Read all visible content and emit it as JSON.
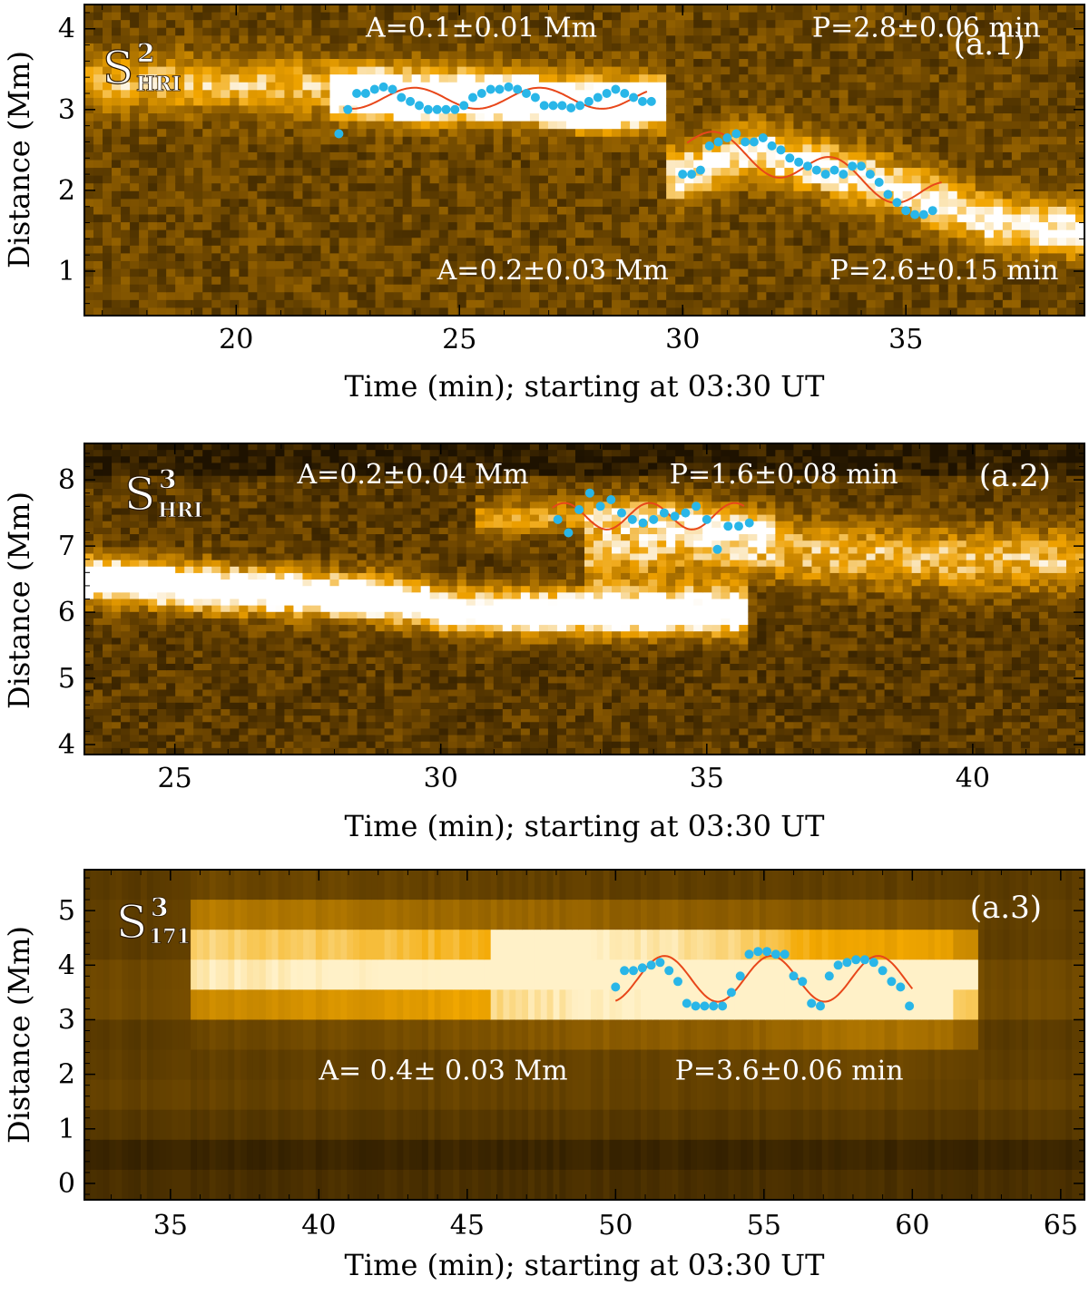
{
  "chart_data": [
    {
      "type": "scatter",
      "panel_label": "(a.1)",
      "slit": {
        "base": "S",
        "sup": "2",
        "sub": "HRI"
      },
      "xlabel": "Time (min); starting at 03:30 UT",
      "ylabel": "Distance (Mm)",
      "xlim": [
        16.6,
        39.0
      ],
      "ylim": [
        0.45,
        4.3
      ],
      "xticks": [
        20,
        25,
        30,
        35
      ],
      "yticks": [
        1,
        2,
        3,
        4
      ],
      "annotations": [
        {
          "text": "A=0.1±0.01 Mm",
          "x": 22.9,
          "y": 3.9
        },
        {
          "text": "P=2.8±0.06 min",
          "x": 32.9,
          "y": 3.9
        },
        {
          "text": "A=0.2±0.03 Mm",
          "x": 24.5,
          "y": 0.9
        },
        {
          "text": "P=2.6±0.15 min",
          "x": 33.3,
          "y": 0.9
        }
      ],
      "image": {
        "dark": "#2a1a00",
        "mid": "#8a5a00",
        "bright": "#f2a500",
        "peak": "#ffffff",
        "bright_tracks": [
          {
            "x": [
              16.6,
              20,
              24,
              27,
              29.3
            ],
            "y": [
              3.35,
              3.3,
              3.25,
              3.15,
              3.1
            ],
            "width": 0.35,
            "strength": 0.55
          },
          {
            "x": [
              22.5,
              24,
              26,
              28,
              29.3
            ],
            "y": [
              3.2,
              3.1,
              3.15,
              3.0,
              3.1
            ],
            "width": 0.25,
            "strength": 0.9
          },
          {
            "x": [
              30,
              31.5,
              33,
              35,
              37,
              39
            ],
            "y": [
              2.2,
              2.5,
              2.3,
              2.0,
              1.6,
              1.5
            ],
            "width": 0.35,
            "strength": 0.75
          }
        ]
      },
      "series": [
        {
          "kind": "points",
          "color": "#29b6e8",
          "x": [
            22.3,
            22.5,
            22.7,
            22.9,
            23.1,
            23.3,
            23.5,
            23.7,
            23.9,
            24.1,
            24.3,
            24.5,
            24.7,
            24.9,
            25.1,
            25.3,
            25.5,
            25.7,
            25.9,
            26.1,
            26.3,
            26.5,
            26.7,
            26.9,
            27.1,
            27.3,
            27.5,
            27.7,
            27.9,
            28.1,
            28.3,
            28.5,
            28.7,
            28.9,
            29.1,
            29.3
          ],
          "y": [
            2.7,
            3.0,
            3.2,
            3.2,
            3.25,
            3.28,
            3.25,
            3.15,
            3.1,
            3.05,
            3.0,
            3.0,
            3.0,
            3.0,
            3.05,
            3.15,
            3.2,
            3.25,
            3.25,
            3.28,
            3.25,
            3.2,
            3.15,
            3.05,
            3.05,
            3.05,
            3.02,
            3.05,
            3.1,
            3.15,
            3.2,
            3.25,
            3.2,
            3.15,
            3.1,
            3.1
          ]
        },
        {
          "kind": "fit",
          "color": "#e8471a",
          "x0": 22.4,
          "x1": 29.2,
          "mean": 3.14,
          "amp": 0.13,
          "period": 2.8,
          "phase": -2.0
        },
        {
          "kind": "points",
          "color": "#29b6e8",
          "x": [
            30.0,
            30.2,
            30.4,
            30.6,
            30.8,
            31.0,
            31.2,
            31.4,
            31.6,
            31.8,
            32.0,
            32.2,
            32.4,
            32.6,
            32.8,
            33.0,
            33.2,
            33.4,
            33.6,
            33.8,
            34.0,
            34.2,
            34.4,
            34.6,
            34.8,
            35.0,
            35.2,
            35.4,
            35.6
          ],
          "y": [
            2.2,
            2.2,
            2.25,
            2.55,
            2.6,
            2.65,
            2.7,
            2.6,
            2.6,
            2.65,
            2.55,
            2.5,
            2.4,
            2.35,
            2.3,
            2.25,
            2.2,
            2.25,
            2.2,
            2.3,
            2.3,
            2.2,
            2.1,
            1.95,
            1.85,
            1.75,
            1.7,
            1.7,
            1.75
          ]
        },
        {
          "kind": "fit",
          "color": "#e8471a",
          "x0": 30.1,
          "x1": 35.8,
          "mean": 2.6,
          "trend": -0.12,
          "amp": 0.2,
          "period": 2.6,
          "phase": 2.6
        }
      ]
    },
    {
      "type": "scatter",
      "panel_label": "(a.2)",
      "slit": {
        "base": "S",
        "sup": "3",
        "sub": "HRI"
      },
      "xlabel": "Time (min); starting at 03:30 UT",
      "ylabel": "Distance (Mm)",
      "xlim": [
        23.3,
        42.1
      ],
      "ylim": [
        3.85,
        8.55
      ],
      "xticks": [
        25,
        30,
        35,
        40
      ],
      "yticks": [
        4,
        5,
        6,
        7,
        8
      ],
      "annotations": [
        {
          "text": "A=0.2±0.04 Mm",
          "x": 27.3,
          "y": 7.95
        },
        {
          "text": "P=1.6±0.08 min",
          "x": 34.3,
          "y": 7.95
        }
      ],
      "image": {
        "dark": "#1e1200",
        "mid": "#7a4e00",
        "bright": "#eea000",
        "peak": "#ffffff",
        "bright_tracks": [
          {
            "x": [
              23.3,
              25,
              27,
              29,
              30.5,
              32,
              34,
              35.5
            ],
            "y": [
              6.5,
              6.4,
              6.3,
              6.2,
              6.0,
              6.0,
              6.0,
              6.0
            ],
            "width": 0.35,
            "strength": 1.0
          },
          {
            "x": [
              33,
              35,
              37,
              39,
              42.1
            ],
            "y": [
              6.9,
              7.0,
              6.9,
              6.8,
              6.8
            ],
            "width": 0.5,
            "strength": 0.55
          },
          {
            "x": [
              31,
              33,
              35,
              36
            ],
            "y": [
              7.4,
              7.5,
              7.4,
              7.3
            ],
            "width": 0.3,
            "strength": 0.45
          }
        ],
        "dark_band_top": 8.1
      },
      "series": [
        {
          "kind": "points",
          "color": "#29b6e8",
          "x": [
            32.2,
            32.4,
            32.6,
            32.8,
            33.0,
            33.2,
            33.4,
            33.6,
            33.8,
            34.0,
            34.2,
            34.4,
            34.6,
            34.8,
            35.0,
            35.2,
            35.4,
            35.6,
            35.8
          ],
          "y": [
            7.4,
            7.2,
            7.55,
            7.8,
            7.6,
            7.7,
            7.5,
            7.4,
            7.35,
            7.4,
            7.5,
            7.45,
            7.5,
            7.6,
            7.4,
            6.95,
            7.3,
            7.3,
            7.35
          ]
        },
        {
          "kind": "fit",
          "color": "#e8471a",
          "x0": 32.1,
          "x1": 35.7,
          "mean": 7.45,
          "amp": 0.2,
          "period": 1.6,
          "phase": 0.3
        }
      ]
    },
    {
      "type": "scatter",
      "panel_label": "(a.3)",
      "slit": {
        "base": "S",
        "sup": "3",
        "sub": "171"
      },
      "xlabel": "Time (min); starting at 03:30 UT",
      "ylabel": "Distance (Mm)",
      "xlim": [
        32.1,
        65.8
      ],
      "ylim": [
        -0.3,
        5.75
      ],
      "xticks": [
        35,
        40,
        45,
        50,
        55,
        60,
        65
      ],
      "yticks": [
        0,
        1,
        2,
        3,
        4,
        5
      ],
      "annotations": [
        {
          "text": "A= 0.4± 0.03 Mm",
          "x": 40.0,
          "y": 1.9
        },
        {
          "text": "P=3.6±0.06 min",
          "x": 52.0,
          "y": 1.9
        }
      ],
      "image": {
        "dark": "#231500",
        "mid": "#8c5c00",
        "bright": "#f3a800",
        "peak": "#fff1c8",
        "bright_tracks": [
          {
            "x": [
              36,
              42,
              46,
              50,
              54,
              58,
              62
            ],
            "y": [
              4.1,
              4.0,
              3.9,
              3.8,
              3.8,
              3.7,
              3.7
            ],
            "width": 0.9,
            "strength": 0.75
          },
          {
            "x": [
              46,
              50,
              54,
              57,
              61
            ],
            "y": [
              3.9,
              3.9,
              3.8,
              3.6,
              3.6
            ],
            "width": 0.6,
            "strength": 0.5
          }
        ]
      },
      "series": [
        {
          "kind": "points",
          "color": "#29b6e8",
          "x": [
            50.0,
            50.3,
            50.6,
            50.9,
            51.2,
            51.5,
            51.8,
            52.1,
            52.4,
            52.7,
            53.0,
            53.3,
            53.6,
            53.9,
            54.2,
            54.5,
            54.8,
            55.1,
            55.4,
            55.7,
            56.0,
            56.3,
            56.6,
            56.9,
            57.2,
            57.5,
            57.8,
            58.1,
            58.4,
            58.7,
            59.0,
            59.3,
            59.6,
            59.9
          ],
          "y": [
            3.6,
            3.9,
            3.9,
            3.95,
            4.0,
            4.05,
            3.9,
            3.7,
            3.3,
            3.25,
            3.25,
            3.25,
            3.25,
            3.5,
            3.8,
            4.2,
            4.25,
            4.25,
            4.2,
            4.2,
            3.8,
            3.7,
            3.3,
            3.25,
            3.8,
            4.0,
            4.05,
            4.1,
            4.1,
            4.05,
            3.9,
            3.7,
            3.6,
            3.25
          ]
        },
        {
          "kind": "fit",
          "color": "#e8471a",
          "x0": 50.0,
          "x1": 60.0,
          "mean": 3.75,
          "amp": 0.42,
          "period": 3.6,
          "phase": -0.6
        }
      ]
    }
  ]
}
